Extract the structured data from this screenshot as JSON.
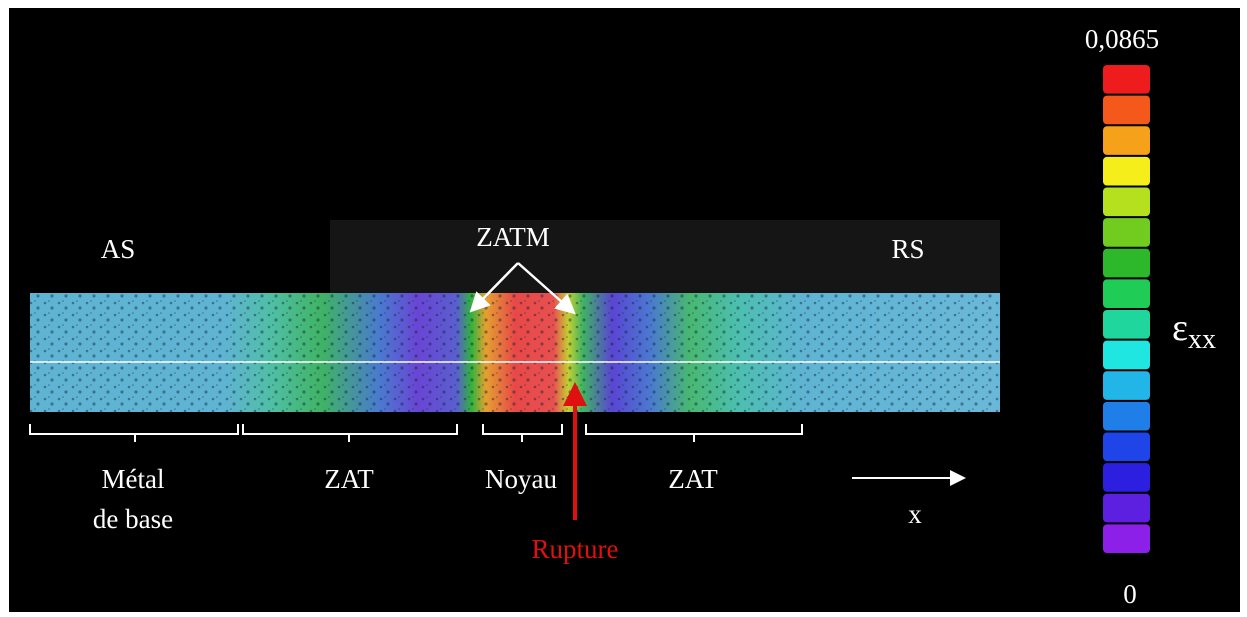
{
  "annotations": {
    "advancing_side": "AS",
    "retreating_side": "RS",
    "zatm": "ZATM",
    "rupture": "Rupture",
    "axis": "x"
  },
  "zones": [
    "Métal",
    "de base",
    "ZAT",
    "Noyau",
    "ZAT"
  ],
  "colorbar": {
    "max": {
      "value": 0.0865,
      "label": "0,0865"
    },
    "min": 0,
    "symbol": "ε",
    "subscript": "xx",
    "colors": [
      "#ee1c1c",
      "#f4581a",
      "#f5a11a",
      "#f5ee1a",
      "#b4e01e",
      "#72cc20",
      "#2cb82a",
      "#1fcc55",
      "#1fd79c",
      "#1fe6e0",
      "#22b6e8",
      "#1f7ee8",
      "#1f44e8",
      "#2d1fe0",
      "#5d1fe0",
      "#8c1fe8"
    ]
  }
}
